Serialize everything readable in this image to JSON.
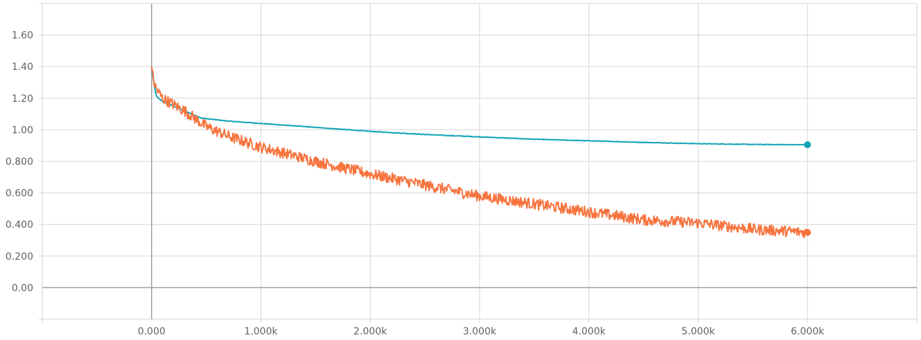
{
  "chart_data": {
    "type": "line",
    "title": "",
    "xlabel": "",
    "ylabel": "",
    "xlim": [
      -1000,
      7000
    ],
    "ylim": [
      -0.2,
      1.8
    ],
    "grid": true,
    "x_ticks": [
      0,
      1000,
      2000,
      3000,
      4000,
      5000,
      6000
    ],
    "x_tick_labels": [
      "0.000",
      "1.000k",
      "2.000k",
      "3.000k",
      "4.000k",
      "5.000k",
      "6.000k"
    ],
    "y_ticks": [
      0,
      0.2,
      0.4,
      0.6,
      0.8,
      1.0,
      1.2,
      1.4,
      1.6
    ],
    "y_tick_labels": [
      "0.00",
      "0.200",
      "0.400",
      "0.600",
      "0.800",
      "1.00",
      "1.20",
      "1.40",
      "1.60"
    ],
    "series": [
      {
        "color": "#12a4b6",
        "noise": 0.002,
        "x": [
          0,
          20,
          40,
          60,
          100,
          200,
          300,
          400,
          450,
          500,
          700,
          1000,
          1500,
          2000,
          2500,
          3000,
          3500,
          4000,
          4500,
          5000,
          5500,
          6000
        ],
        "values": [
          1.4,
          1.3,
          1.22,
          1.2,
          1.18,
          1.15,
          1.12,
          1.09,
          1.075,
          1.07,
          1.055,
          1.04,
          1.015,
          0.99,
          0.97,
          0.955,
          0.94,
          0.93,
          0.92,
          0.912,
          0.907,
          0.905
        ]
      },
      {
        "color": "#f7743f",
        "noise": 0.035,
        "x": [
          0,
          20,
          50,
          100,
          200,
          300,
          400,
          500,
          700,
          1000,
          1500,
          2000,
          2500,
          3000,
          3500,
          4000,
          4500,
          5000,
          5500,
          6000
        ],
        "values": [
          1.4,
          1.3,
          1.25,
          1.2,
          1.16,
          1.12,
          1.07,
          1.02,
          0.96,
          0.89,
          0.8,
          0.72,
          0.65,
          0.58,
          0.53,
          0.48,
          0.43,
          0.41,
          0.37,
          0.35
        ]
      }
    ]
  }
}
